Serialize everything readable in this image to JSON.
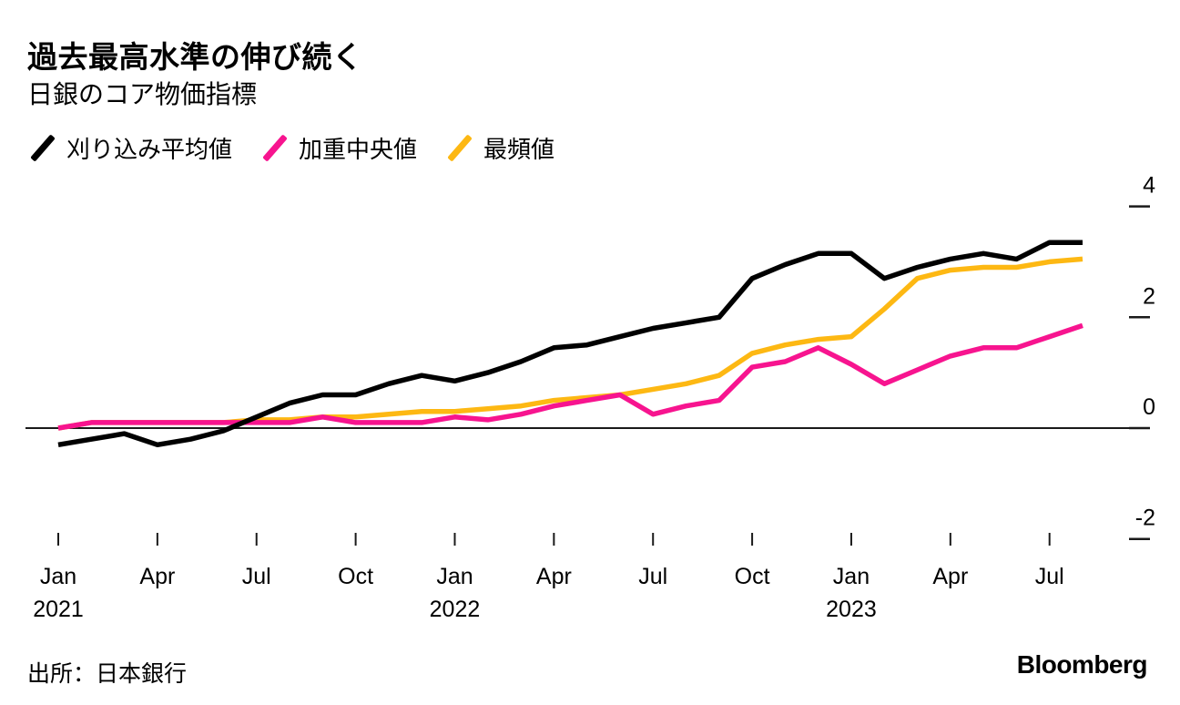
{
  "header": {
    "title": "過去最高水準の伸び続く",
    "subtitle": "日銀のコア物価指標"
  },
  "legend": {
    "items": [
      {
        "label": "刈り込み平均値",
        "color": "#000000"
      },
      {
        "label": "加重中央値",
        "color": "#f7148f"
      },
      {
        "label": "最頻値",
        "color": "#fdb813"
      }
    ]
  },
  "chart_data": {
    "type": "line",
    "title": "日銀のコア物価指標",
    "xlabel": "",
    "ylabel": "",
    "ylim": [
      -2.7,
      4.4
    ],
    "grid": false,
    "legend_position": "top-left",
    "y_axis_side": "right",
    "categories": [
      "2021-01",
      "2021-02",
      "2021-03",
      "2021-04",
      "2021-05",
      "2021-06",
      "2021-07",
      "2021-08",
      "2021-09",
      "2021-10",
      "2021-11",
      "2021-12",
      "2022-01",
      "2022-02",
      "2022-03",
      "2022-04",
      "2022-05",
      "2022-06",
      "2022-07",
      "2022-08",
      "2022-09",
      "2022-10",
      "2022-11",
      "2022-12",
      "2023-01",
      "2023-02",
      "2023-03",
      "2023-04",
      "2023-05",
      "2023-06",
      "2023-07",
      "2023-08"
    ],
    "series": [
      {
        "name": "刈り込み平均値",
        "color": "#000000",
        "values": [
          -0.3,
          -0.2,
          -0.1,
          -0.3,
          -0.2,
          -0.05,
          0.2,
          0.45,
          0.6,
          0.6,
          0.8,
          0.95,
          0.85,
          1.0,
          1.2,
          1.45,
          1.5,
          1.65,
          1.8,
          1.9,
          2.0,
          2.7,
          2.95,
          3.15,
          3.15,
          2.7,
          2.9,
          3.05,
          3.15,
          3.05,
          3.35,
          3.35
        ]
      },
      {
        "name": "加重中央値",
        "color": "#f7148f",
        "values": [
          0.0,
          0.1,
          0.1,
          0.1,
          0.1,
          0.1,
          0.1,
          0.1,
          0.2,
          0.1,
          0.1,
          0.1,
          0.2,
          0.15,
          0.25,
          0.4,
          0.5,
          0.6,
          0.25,
          0.4,
          0.5,
          1.1,
          1.2,
          1.45,
          1.15,
          0.8,
          1.05,
          1.3,
          1.45,
          1.45,
          1.65,
          1.85
        ]
      },
      {
        "name": "最頻値",
        "color": "#fdb813",
        "values": [
          0.0,
          0.1,
          0.1,
          0.1,
          0.1,
          0.1,
          0.15,
          0.15,
          0.2,
          0.2,
          0.25,
          0.3,
          0.3,
          0.35,
          0.4,
          0.5,
          0.55,
          0.6,
          0.7,
          0.8,
          0.95,
          1.35,
          1.5,
          1.6,
          1.65,
          2.15,
          2.7,
          2.85,
          2.9,
          2.9,
          3.0,
          3.05
        ]
      }
    ],
    "x_ticks": [
      {
        "index": 0,
        "label": "Jan",
        "year": "2021"
      },
      {
        "index": 3,
        "label": "Apr"
      },
      {
        "index": 6,
        "label": "Jul"
      },
      {
        "index": 9,
        "label": "Oct"
      },
      {
        "index": 12,
        "label": "Jan",
        "year": "2022"
      },
      {
        "index": 15,
        "label": "Apr"
      },
      {
        "index": 18,
        "label": "Jul"
      },
      {
        "index": 21,
        "label": "Oct"
      },
      {
        "index": 24,
        "label": "Jan",
        "year": "2023"
      },
      {
        "index": 27,
        "label": "Apr"
      },
      {
        "index": 30,
        "label": "Jul"
      }
    ],
    "y_ticks": [
      {
        "value": 4,
        "label": "4"
      },
      {
        "value": 2,
        "label": "2"
      },
      {
        "value": 0,
        "label": "0"
      },
      {
        "value": -2,
        "label": "-2"
      }
    ]
  },
  "footer": {
    "source": "出所：日本銀行",
    "logo": "Bloomberg"
  }
}
